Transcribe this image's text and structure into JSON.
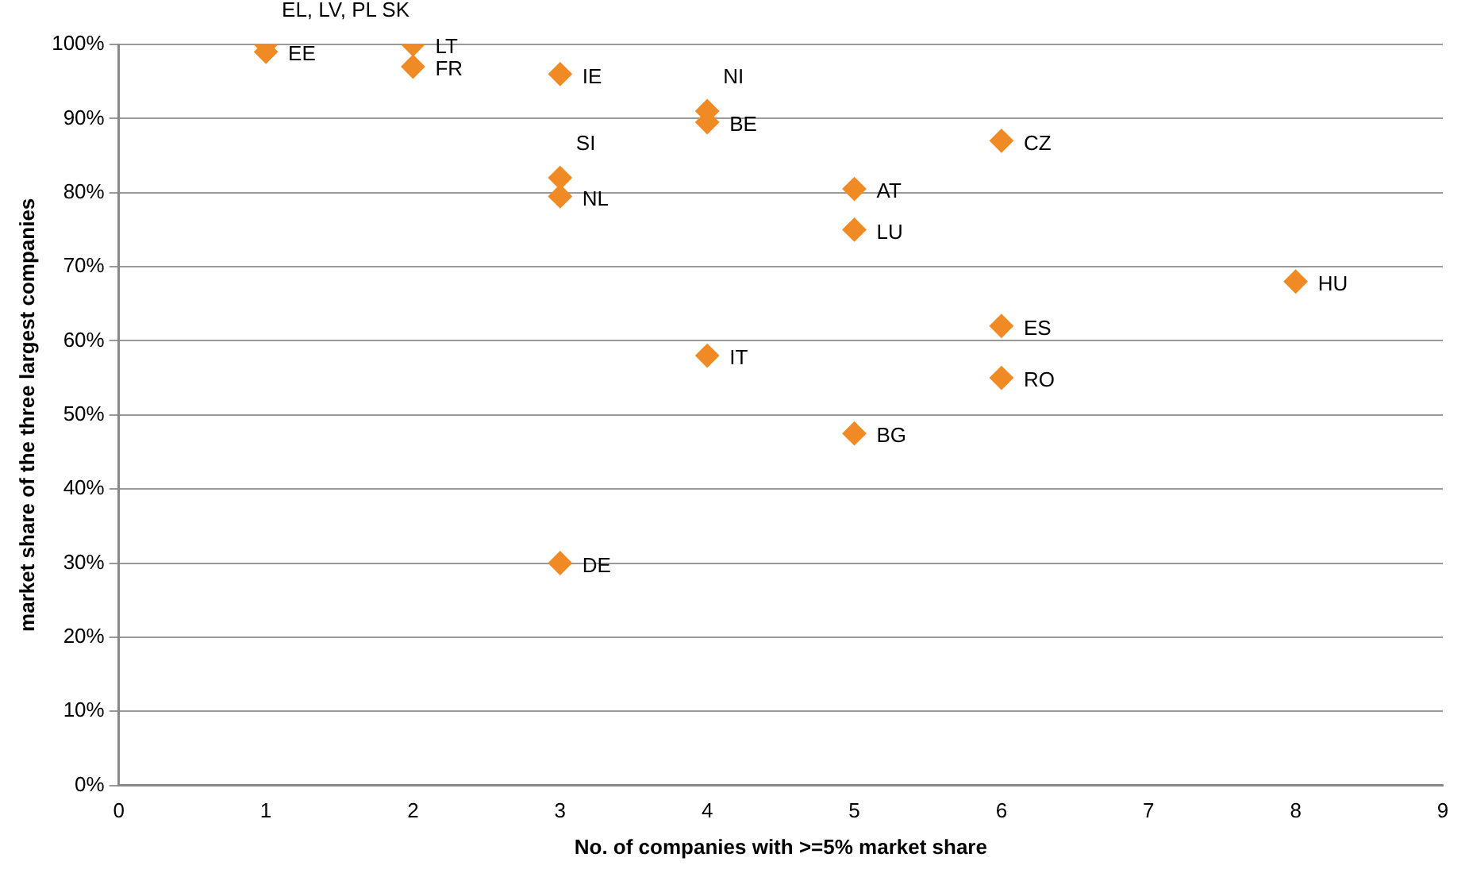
{
  "chart_data": {
    "type": "scatter",
    "xlabel": "No. of companies with >=5% market share",
    "ylabel": "market share of the three largest companies",
    "series": [
      {
        "color": "#f08a24",
        "x": [
          1,
          1,
          2,
          2,
          3,
          3,
          3,
          3,
          4,
          4,
          4,
          5,
          5,
          5,
          6,
          6,
          6,
          8
        ],
        "values": [
          99,
          100,
          100,
          97,
          96,
          82,
          79.5,
          30,
          91,
          89.5,
          58,
          80.5,
          75,
          47.5,
          87,
          62,
          55,
          68
        ]
      }
    ],
    "xlim": [
      0,
      9
    ],
    "xticks": [
      0,
      1,
      2,
      3,
      4,
      5,
      6,
      7,
      8,
      9
    ],
    "ylim": [
      0,
      100
    ],
    "yticks": [
      {
        "value": 0,
        "label": "0%"
      },
      {
        "value": 10,
        "label": "10%"
      },
      {
        "value": 20,
        "label": "20%"
      },
      {
        "value": 30,
        "label": "30%"
      },
      {
        "value": 40,
        "label": "40%"
      },
      {
        "value": 50,
        "label": "50%"
      },
      {
        "value": 60,
        "label": "60%"
      },
      {
        "value": 70,
        "label": "70%"
      },
      {
        "value": 80,
        "label": "80%"
      },
      {
        "value": 90,
        "label": "90%"
      },
      {
        "value": 100,
        "label": "100%"
      }
    ],
    "grid": "y",
    "marker": "diamond",
    "legend": false,
    "annotations": [
      {
        "text": "EE",
        "x": 1,
        "y": 99
      },
      {
        "text": "EL, LV, PL SK",
        "x": 1,
        "y": 100
      },
      {
        "text": "LT",
        "x": 2,
        "y": 100
      },
      {
        "text": "FR",
        "x": 2,
        "y": 97
      },
      {
        "text": "IE",
        "x": 3,
        "y": 96
      },
      {
        "text": "NL",
        "x": 3,
        "y": 79.5
      },
      {
        "text": "SI",
        "x": 3,
        "y": 82
      },
      {
        "text": "DE",
        "x": 3,
        "y": 30
      },
      {
        "text": "BE",
        "x": 4,
        "y": 89.5
      },
      {
        "text": "NI",
        "x": 4,
        "y": 91
      },
      {
        "text": "IT",
        "x": 4,
        "y": 58
      },
      {
        "text": "AT",
        "x": 5,
        "y": 80.5
      },
      {
        "text": "LU",
        "x": 5,
        "y": 75
      },
      {
        "text": "BG",
        "x": 5,
        "y": 47.5
      },
      {
        "text": "CZ",
        "x": 6,
        "y": 87
      },
      {
        "text": "ES",
        "x": 6,
        "y": 62
      },
      {
        "text": "RO",
        "x": 6,
        "y": 55
      },
      {
        "text": "HU",
        "x": 8,
        "y": 68
      }
    ]
  }
}
